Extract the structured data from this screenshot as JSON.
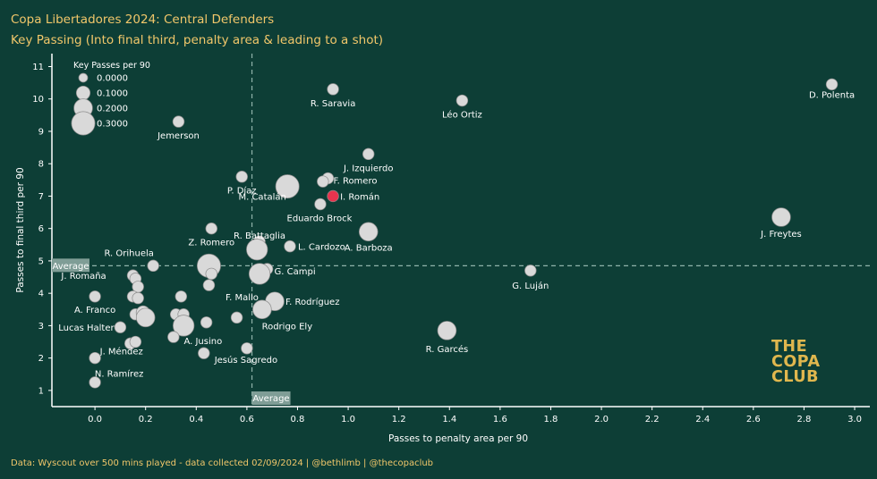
{
  "title": "Copa Libertadores  2024: Central Defenders",
  "subtitle": "Key Passing (Into final third, penalty area & leading to a shot)",
  "footer": "Data: Wyscout over 500 mins played - data collected 02/09/2024 | @bethlimb | @thecopaclub",
  "brand": [
    "THE",
    "COPA",
    "CLUB"
  ],
  "colors": {
    "background": "#0d3e36",
    "title": "#f1c76a",
    "point": "#d9d9d9",
    "highlight": "#e8344e",
    "reference_line": "#8fb3aa",
    "reference_label_bg": "#7f9d96",
    "brand": "#e0b74e"
  },
  "chart_data": {
    "type": "scatter",
    "xlabel": "Passes to penalty area per 90",
    "ylabel": "Passes to final third per 90",
    "xlim": [
      -0.17,
      3.06
    ],
    "ylim": [
      0.5,
      11.4
    ],
    "xticks": [
      "0.0",
      "0.2",
      "0.4",
      "0.6",
      "0.8",
      "1.0",
      "1.2",
      "1.4",
      "1.6",
      "1.8",
      "2.0",
      "2.2",
      "2.4",
      "2.6",
      "2.8",
      "3.0"
    ],
    "yticks": [
      "1",
      "2",
      "3",
      "4",
      "5",
      "6",
      "7",
      "8",
      "9",
      "10",
      "11"
    ],
    "size_legend": {
      "title": "Key Passes per 90",
      "entries": [
        {
          "label": "0.0000",
          "value": 0.0
        },
        {
          "label": "0.1000",
          "value": 0.1
        },
        {
          "label": "0.2000",
          "value": 0.2
        },
        {
          "label": "0.3000",
          "value": 0.3
        }
      ]
    },
    "reference_lines": {
      "x_average": 0.62,
      "y_average": 4.85,
      "label": "Average"
    },
    "points": [
      {
        "x": 2.91,
        "y": 10.45,
        "size": 0.05,
        "label": "D. Polenta"
      },
      {
        "x": 0.94,
        "y": 10.3,
        "size": 0.05,
        "label": "R. Saravia"
      },
      {
        "x": 1.45,
        "y": 9.95,
        "size": 0.05,
        "label": "Léo Ortiz"
      },
      {
        "x": 0.33,
        "y": 9.3,
        "size": 0.05,
        "label": "Jemerson"
      },
      {
        "x": 1.08,
        "y": 8.3,
        "size": 0.05,
        "label": "J. Izquierdo"
      },
      {
        "x": 0.58,
        "y": 7.6,
        "size": 0.05,
        "label": "P. Díaz"
      },
      {
        "x": 0.92,
        "y": 7.55,
        "size": 0.05,
        "label": "F. Romero"
      },
      {
        "x": 0.9,
        "y": 7.45,
        "size": 0.05,
        "label": ""
      },
      {
        "x": 0.76,
        "y": 7.3,
        "size": 0.3,
        "label": "M. Catalán"
      },
      {
        "x": 0.94,
        "y": 7.0,
        "size": 0.05,
        "label": "I. Román",
        "highlight": true
      },
      {
        "x": 0.89,
        "y": 6.75,
        "size": 0.05,
        "label": "Eduardo Brock"
      },
      {
        "x": 2.71,
        "y": 6.35,
        "size": 0.2,
        "label": "J. Freytes"
      },
      {
        "x": 0.46,
        "y": 6.0,
        "size": 0.05,
        "label": "Z. Romero"
      },
      {
        "x": 1.08,
        "y": 5.9,
        "size": 0.2,
        "label": "A. Barboza"
      },
      {
        "x": 0.65,
        "y": 5.6,
        "size": 0.05,
        "label": "R. Battaglia"
      },
      {
        "x": 0.64,
        "y": 5.35,
        "size": 0.25,
        "label": ""
      },
      {
        "x": 0.77,
        "y": 5.45,
        "size": 0.05,
        "label": "L. Cardozo"
      },
      {
        "x": 0.23,
        "y": 4.85,
        "size": 0.05,
        "label": "R. Orihuela"
      },
      {
        "x": 0.45,
        "y": 4.85,
        "size": 0.3,
        "label": ""
      },
      {
        "x": 0.46,
        "y": 4.6,
        "size": 0.05,
        "label": ""
      },
      {
        "x": 0.68,
        "y": 4.75,
        "size": 0.05,
        "label": "G. Campi"
      },
      {
        "x": 0.65,
        "y": 4.6,
        "size": 0.25,
        "label": ""
      },
      {
        "x": 1.72,
        "y": 4.7,
        "size": 0.05,
        "label": "G. Luján"
      },
      {
        "x": 0.15,
        "y": 4.55,
        "size": 0.05,
        "label": "J. Romaña"
      },
      {
        "x": 0.16,
        "y": 4.45,
        "size": 0.05,
        "label": ""
      },
      {
        "x": 0.17,
        "y": 4.2,
        "size": 0.05,
        "label": ""
      },
      {
        "x": 0.45,
        "y": 4.25,
        "size": 0.05,
        "label": "F. Mallo"
      },
      {
        "x": 0.0,
        "y": 3.9,
        "size": 0.05,
        "label": "A. Franco"
      },
      {
        "x": 0.15,
        "y": 3.9,
        "size": 0.05,
        "label": ""
      },
      {
        "x": 0.17,
        "y": 3.85,
        "size": 0.05,
        "label": ""
      },
      {
        "x": 0.34,
        "y": 3.9,
        "size": 0.05,
        "label": ""
      },
      {
        "x": 0.71,
        "y": 3.75,
        "size": 0.2,
        "label": "F. Rodríguez"
      },
      {
        "x": 0.66,
        "y": 3.5,
        "size": 0.2,
        "label": "Rodrigo Ely"
      },
      {
        "x": 0.16,
        "y": 3.35,
        "size": 0.05,
        "label": ""
      },
      {
        "x": 0.19,
        "y": 3.4,
        "size": 0.1,
        "label": ""
      },
      {
        "x": 0.2,
        "y": 3.25,
        "size": 0.2,
        "label": ""
      },
      {
        "x": 0.32,
        "y": 3.35,
        "size": 0.05,
        "label": ""
      },
      {
        "x": 0.35,
        "y": 3.35,
        "size": 0.05,
        "label": ""
      },
      {
        "x": 0.56,
        "y": 3.25,
        "size": 0.05,
        "label": ""
      },
      {
        "x": 0.35,
        "y": 3.0,
        "size": 0.25,
        "label": ""
      },
      {
        "x": 0.44,
        "y": 3.1,
        "size": 0.05,
        "label": ""
      },
      {
        "x": 0.1,
        "y": 2.95,
        "size": 0.05,
        "label": "Lucas Halter"
      },
      {
        "x": 1.39,
        "y": 2.85,
        "size": 0.2,
        "label": "R. Garcés"
      },
      {
        "x": 0.31,
        "y": 2.65,
        "size": 0.05,
        "label": "A. Jusino"
      },
      {
        "x": 0.14,
        "y": 2.45,
        "size": 0.05,
        "label": "J. Méndez"
      },
      {
        "x": 0.16,
        "y": 2.5,
        "size": 0.05,
        "label": ""
      },
      {
        "x": 0.6,
        "y": 2.3,
        "size": 0.05,
        "label": "Jesús Sagredo"
      },
      {
        "x": 0.43,
        "y": 2.15,
        "size": 0.05,
        "label": ""
      },
      {
        "x": 0.0,
        "y": 2.0,
        "size": 0.05,
        "label": "N. Ramírez"
      },
      {
        "x": 0.0,
        "y": 1.25,
        "size": 0.05,
        "label": ""
      }
    ]
  }
}
